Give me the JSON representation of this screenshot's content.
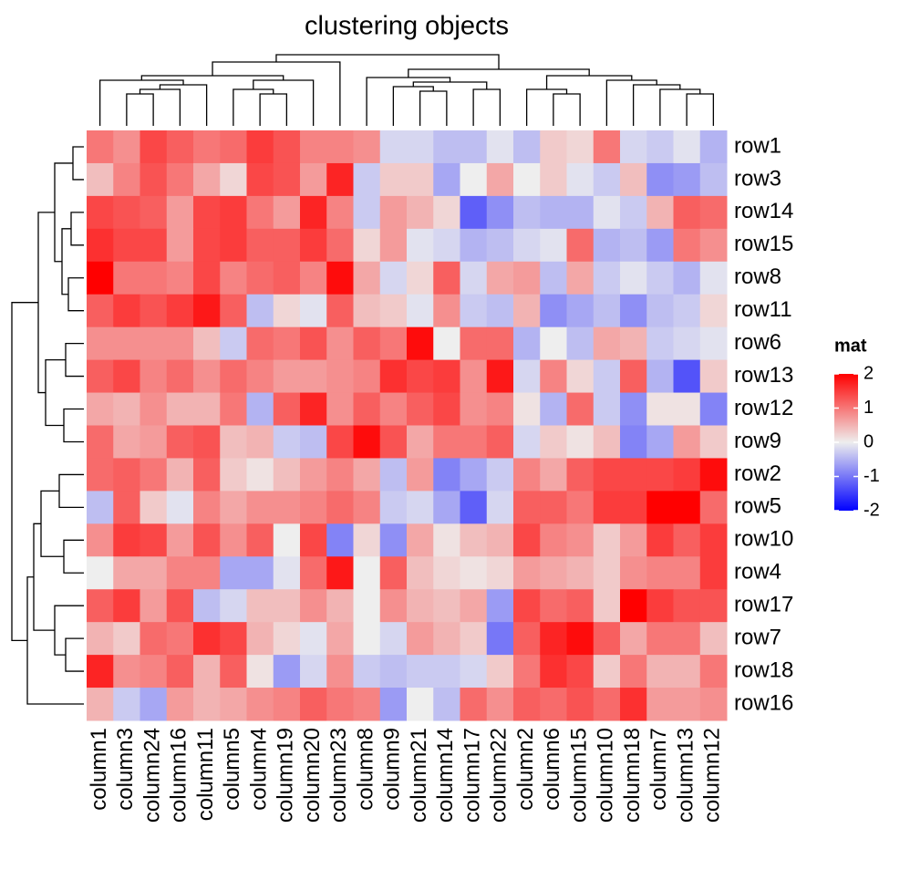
{
  "chart_data": {
    "type": "heatmap",
    "title": "clustering objects",
    "rows": [
      "row1",
      "row3",
      "row14",
      "row15",
      "row8",
      "row11",
      "row6",
      "row13",
      "row12",
      "row9",
      "row2",
      "row5",
      "row10",
      "row4",
      "row17",
      "row7",
      "row18",
      "row16"
    ],
    "columns": [
      "column1",
      "column3",
      "column24",
      "column16",
      "column11",
      "column5",
      "column4",
      "column19",
      "column20",
      "column23",
      "column8",
      "column9",
      "column21",
      "column14",
      "column17",
      "column22",
      "column2",
      "column6",
      "column15",
      "column10",
      "column18",
      "column7",
      "column13",
      "column12"
    ],
    "values": [
      [
        1.0,
        0.8,
        1.4,
        1.2,
        1.0,
        1.1,
        1.5,
        1.3,
        0.9,
        0.9,
        0.8,
        -0.2,
        -0.2,
        -0.4,
        -0.4,
        -0.1,
        -0.4,
        0.3,
        0.2,
        1.0,
        -0.2,
        -0.3,
        -0.1,
        -0.5
      ],
      [
        0.4,
        0.9,
        1.3,
        1.0,
        0.6,
        0.2,
        1.4,
        1.3,
        0.7,
        1.7,
        -0.3,
        0.3,
        0.3,
        -0.6,
        0.0,
        0.6,
        0.0,
        0.3,
        -0.1,
        -0.3,
        0.4,
        -0.8,
        -0.7,
        -0.4
      ],
      [
        1.4,
        1.3,
        1.2,
        0.7,
        1.4,
        1.5,
        1.0,
        0.7,
        1.7,
        0.9,
        -0.3,
        0.7,
        0.5,
        0.2,
        -1.2,
        -0.8,
        -0.4,
        -0.5,
        -0.5,
        -0.1,
        -0.3,
        0.5,
        1.2,
        1.1
      ],
      [
        1.6,
        1.4,
        1.4,
        0.7,
        1.4,
        1.5,
        1.2,
        1.2,
        1.5,
        1.1,
        0.2,
        0.7,
        -0.1,
        -0.2,
        -0.5,
        -0.4,
        -0.2,
        -0.1,
        1.1,
        -0.5,
        -0.4,
        -0.7,
        1.0,
        0.8
      ],
      [
        2.0,
        1.0,
        1.0,
        0.9,
        1.4,
        0.9,
        1.1,
        1.2,
        0.9,
        1.9,
        0.6,
        -0.2,
        0.2,
        1.2,
        -0.2,
        0.6,
        0.7,
        -0.4,
        0.6,
        -0.3,
        -0.1,
        -0.3,
        -0.5,
        -0.1
      ],
      [
        1.2,
        1.5,
        1.3,
        1.5,
        1.8,
        1.2,
        -0.4,
        0.2,
        -0.1,
        1.2,
        0.4,
        0.3,
        -0.1,
        0.8,
        -0.3,
        -0.4,
        0.5,
        -0.8,
        -0.6,
        -0.4,
        -0.8,
        -0.4,
        -0.3,
        0.2
      ],
      [
        0.8,
        0.8,
        0.8,
        0.8,
        0.4,
        -0.3,
        1.1,
        1.0,
        1.3,
        0.8,
        1.2,
        1.0,
        1.9,
        0.0,
        1.1,
        1.1,
        -0.5,
        0.0,
        -0.4,
        0.6,
        0.5,
        -0.3,
        -0.2,
        -0.1
      ],
      [
        1.2,
        1.4,
        0.9,
        1.1,
        0.8,
        1.1,
        0.9,
        0.7,
        0.7,
        0.8,
        0.9,
        1.6,
        1.4,
        1.5,
        0.8,
        1.8,
        -0.2,
        0.9,
        0.2,
        -0.3,
        1.2,
        -0.5,
        -1.3,
        0.3
      ],
      [
        0.6,
        0.5,
        0.8,
        0.5,
        0.5,
        1.0,
        -0.5,
        1.2,
        1.7,
        0.8,
        1.2,
        0.9,
        1.2,
        1.4,
        0.8,
        0.9,
        0.1,
        -0.5,
        1.1,
        -0.3,
        -0.8,
        0.1,
        0.1,
        -0.9
      ],
      [
        1.1,
        0.6,
        0.7,
        1.2,
        1.3,
        0.4,
        0.5,
        -0.3,
        -0.4,
        1.4,
        1.9,
        1.3,
        0.6,
        1.0,
        1.0,
        1.2,
        -0.2,
        0.3,
        0.1,
        0.4,
        -0.9,
        -0.6,
        0.7,
        0.3
      ],
      [
        1.1,
        1.2,
        1.0,
        0.5,
        1.2,
        0.3,
        0.1,
        0.4,
        0.7,
        0.9,
        0.6,
        -0.4,
        0.7,
        -0.9,
        -0.6,
        -0.3,
        0.9,
        0.6,
        1.2,
        1.4,
        1.4,
        1.4,
        1.5,
        1.9
      ],
      [
        -0.4,
        1.2,
        0.3,
        -0.1,
        0.9,
        0.6,
        0.8,
        0.8,
        0.9,
        1.1,
        0.9,
        -0.3,
        -0.2,
        -0.6,
        -1.2,
        -0.2,
        1.2,
        1.2,
        1.0,
        1.5,
        1.5,
        2.0,
        2.0,
        1.1
      ],
      [
        0.8,
        1.5,
        1.4,
        0.7,
        1.3,
        0.8,
        1.2,
        0.0,
        1.4,
        -0.9,
        0.2,
        -0.8,
        0.6,
        0.1,
        0.4,
        0.5,
        1.4,
        0.9,
        0.8,
        0.3,
        0.7,
        1.5,
        1.2,
        1.5
      ],
      [
        0.0,
        0.6,
        0.6,
        0.9,
        0.9,
        -0.6,
        -0.6,
        -0.1,
        1.1,
        1.8,
        0.0,
        1.2,
        0.4,
        0.2,
        0.1,
        0.2,
        0.7,
        0.6,
        0.5,
        0.3,
        0.8,
        0.9,
        0.9,
        1.5
      ],
      [
        1.2,
        1.5,
        0.7,
        1.3,
        -0.4,
        -0.2,
        0.4,
        0.4,
        0.8,
        0.5,
        0.0,
        0.8,
        0.5,
        0.4,
        0.6,
        -0.7,
        1.4,
        1.1,
        1.2,
        0.3,
        2.0,
        1.5,
        1.3,
        1.3
      ],
      [
        0.5,
        0.3,
        1.1,
        1.0,
        1.6,
        1.4,
        0.5,
        0.2,
        -0.1,
        0.6,
        0.0,
        -0.2,
        0.7,
        0.5,
        0.3,
        -1.0,
        1.2,
        1.7,
        1.9,
        1.2,
        0.6,
        1.0,
        1.0,
        0.4
      ],
      [
        1.7,
        0.8,
        0.9,
        1.2,
        0.5,
        1.2,
        0.1,
        -0.7,
        -0.2,
        0.8,
        -0.3,
        -0.4,
        -0.3,
        -0.3,
        -0.2,
        0.3,
        1.0,
        1.6,
        1.4,
        0.3,
        1.0,
        0.5,
        0.5,
        1.0
      ],
      [
        0.5,
        -0.3,
        -0.6,
        0.7,
        0.5,
        0.6,
        0.8,
        0.9,
        1.2,
        1.0,
        0.9,
        -0.7,
        0.0,
        -0.4,
        1.1,
        0.8,
        1.2,
        1.1,
        1.3,
        1.1,
        1.6,
        0.7,
        0.7,
        0.8
      ]
    ],
    "colors": {
      "low": "#0000ff",
      "mid": "#eeeeee",
      "high": "#ff0000"
    },
    "clim": [
      -2,
      2
    ],
    "legend": {
      "title": "mat",
      "ticks": [
        -2,
        -1,
        0,
        1,
        2
      ]
    }
  }
}
